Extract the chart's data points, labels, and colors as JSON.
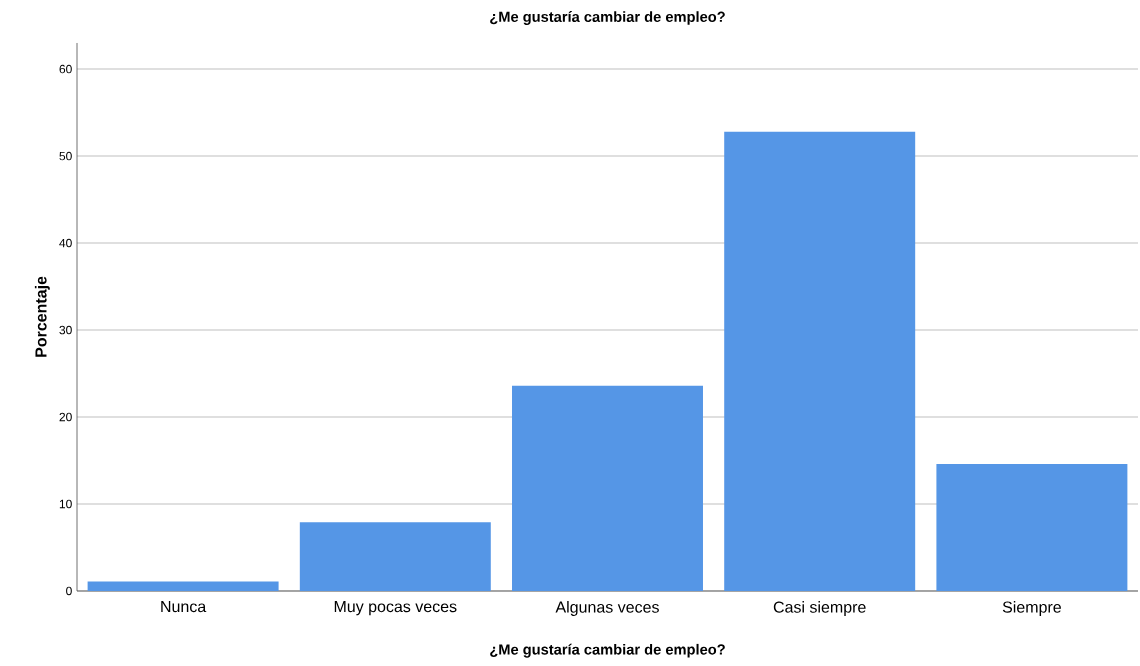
{
  "chart_data": {
    "type": "bar",
    "title": "¿Me gustaría cambiar de empleo?",
    "xlabel": "¿Me gustaría cambiar de empleo?",
    "ylabel": "Porcentaje",
    "categories": [
      "Nunca",
      "Muy pocas veces",
      "Algunas veces",
      "Casi siempre",
      "Siempre"
    ],
    "values": [
      1.1,
      7.9,
      23.6,
      52.8,
      14.6
    ],
    "color": "#5596e6",
    "ylim": [
      0,
      63
    ],
    "yticks": [
      0,
      10,
      20,
      30,
      40,
      50,
      60
    ],
    "grid": "y"
  }
}
